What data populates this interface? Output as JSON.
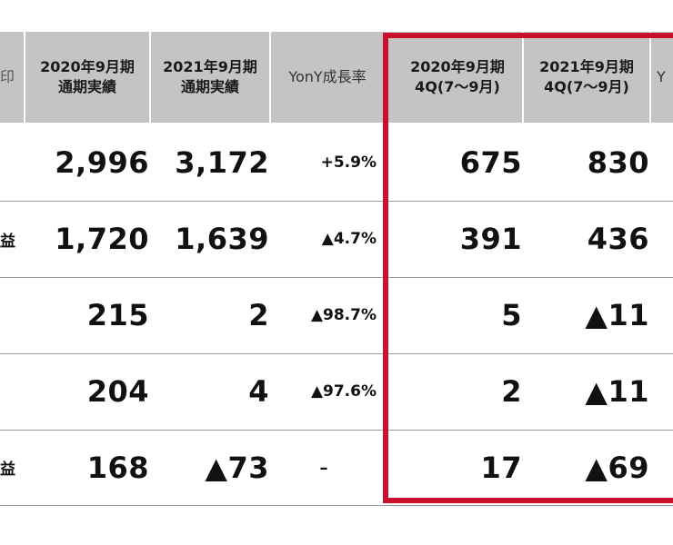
{
  "table": {
    "header_left_fragment": "印",
    "headers": [
      {
        "label": "2020年9月期\n通期実績",
        "style": "bold"
      },
      {
        "label": "2021年9月期\n通期実績",
        "style": "bold"
      },
      {
        "label": "YonY成長率",
        "style": "plain"
      },
      {
        "label": "2020年9月期\n4Q(7〜9月)",
        "style": "bold"
      },
      {
        "label": "2021年9月期\n4Q(7〜9月)",
        "style": "bold"
      },
      {
        "label": "Y",
        "style": "plain"
      }
    ],
    "rows": [
      {
        "left": "",
        "fy2020": "2,996",
        "fy2021": "3,172",
        "yoy": "+5.9%",
        "q4_2020": "675",
        "q4_2021": "830"
      },
      {
        "left": "益",
        "fy2020": "1,720",
        "fy2021": "1,639",
        "yoy": "▲4.7%",
        "q4_2020": "391",
        "q4_2021": "436"
      },
      {
        "left": "",
        "fy2020": "215",
        "fy2021": "2",
        "yoy": "▲98.7%",
        "q4_2020": "5",
        "q4_2021": "▲11"
      },
      {
        "left": "",
        "fy2020": "204",
        "fy2021": "4",
        "yoy": "▲97.6%",
        "q4_2020": "2",
        "q4_2021": "▲11"
      },
      {
        "left": "益",
        "fy2020": "168",
        "fy2021": "▲73",
        "yoy": "–",
        "q4_2020": "17",
        "q4_2021": "▲69"
      }
    ]
  },
  "colors": {
    "header_bg": "#c4c4c4",
    "highlight_frame": "#c8102e"
  }
}
